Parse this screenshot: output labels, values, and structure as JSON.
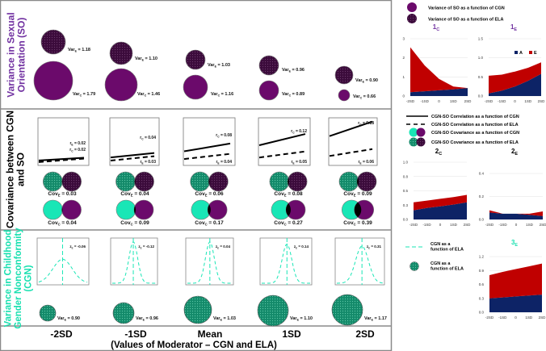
{
  "colors": {
    "cgn_so": "#6b0a6b",
    "ela_so": "#3b0b3b",
    "cgn_teal": "#19e6b6",
    "ela_teal": "#138a6a",
    "A": "#0d2366",
    "E": "#c00000",
    "so_label": "#7030a0",
    "cgn_label": "#19e0b0",
    "title_purple": "#7030a0",
    "title_teal": "#19e0b0"
  },
  "labels": {
    "var": "Var",
    "cov": "Cov",
    "r": "r",
    "z": "z",
    "sub_e": "E",
    "sub_c": "C"
  },
  "row_labels": {
    "so": [
      "Variance in Sexual",
      "Orientation (SO)"
    ],
    "cov": [
      "Covariance between CGN",
      "and SO"
    ],
    "cgn": [
      "Variance in Childhood",
      "Gender Nonconformity",
      "(CGN)"
    ]
  },
  "columns": [
    "-2SD",
    "-1SD",
    "Mean",
    "1SD",
    "2SD"
  ],
  "x_axis_title": "(Values of Moderator – CGN and ELA)",
  "so_variance": {
    "var_e": [
      "1.18",
      "1.10",
      "1.03",
      "0.96",
      "0.90"
    ],
    "var_c": [
      "1.79",
      "1.46",
      "1.16",
      "0.89",
      "0.66"
    ]
  },
  "correlation": {
    "r_c": [
      "0.02",
      "0.04",
      "0.08",
      "0.12",
      "0.18"
    ],
    "r_e": [
      "0.02",
      "0.03",
      "0.04",
      "0.05",
      "0.06"
    ]
  },
  "covariance": {
    "cov_e": [
      "0.03",
      "0.04",
      "0.06",
      "0.08",
      "0.09"
    ],
    "cov_c": [
      "0.04",
      "0.09",
      "0.17",
      "0.27",
      "0.39"
    ]
  },
  "cgn_variance": {
    "z_e": [
      "-0.06",
      "-0.12",
      "0.04",
      "0.14",
      "0.31"
    ],
    "var_e": [
      "0.90",
      "0.96",
      "1.03",
      "1.10",
      "1.17"
    ]
  },
  "legend1": [
    "Variance of SO as a function of CGN",
    "Variance of SO as a function of ELA"
  ],
  "legend2": [
    "CGN-SO Correlation as a function of CGN",
    "CGN-SO Correlation as a function of ELA",
    "CGN-SO Covariance as a function of CGN",
    "CGN-SO Covariance as a function of ELA"
  ],
  "legend3": [
    [
      "CGN as a",
      "function of ELA"
    ],
    [
      "CGN as a",
      "function of ELA"
    ]
  ],
  "chart_data": [
    {
      "type": "area",
      "title": "1",
      "title_sub": "C",
      "categories": [
        "-2SD",
        "-1SD",
        "0",
        "1SD",
        "2SD"
      ],
      "ylim": [
        0,
        3
      ],
      "yticks": [
        "0",
        "1",
        "2",
        "3"
      ],
      "ytick_values": [
        0,
        1,
        2,
        3
      ],
      "series": [
        {
          "name": "A",
          "values": [
            0.2,
            0.25,
            0.3,
            0.35,
            0.42
          ]
        },
        {
          "name": "E",
          "values": [
            2.35,
            1.35,
            0.6,
            0.15,
            0.0
          ]
        }
      ],
      "legend": false
    },
    {
      "type": "area",
      "title": "1",
      "title_sub": "E",
      "categories": [
        "-2SD",
        "-1SD",
        "0",
        "1SD",
        "2SD"
      ],
      "ylim": [
        0,
        1.5
      ],
      "yticks": [
        "0.0",
        "0.5",
        "1.0",
        "1.5"
      ],
      "ytick_values": [
        0,
        0.5,
        1.0,
        1.5
      ],
      "series": [
        {
          "name": "A",
          "values": [
            0.07,
            0.14,
            0.25,
            0.4,
            0.58
          ]
        },
        {
          "name": "E",
          "values": [
            0.46,
            0.42,
            0.39,
            0.34,
            0.3
          ]
        }
      ],
      "legend": true,
      "legend_position": "top-right"
    },
    {
      "type": "area",
      "title": "2",
      "title_sub": "C",
      "categories": [
        "-2SD",
        "-1SD",
        "0",
        "1SD",
        "2SD"
      ],
      "ylim": [
        0,
        1.0
      ],
      "yticks": [
        "0.0",
        "0.3",
        "0.5",
        "0.8",
        "1.0"
      ],
      "ytick_values": [
        0,
        0.25,
        0.5,
        0.75,
        1.0
      ],
      "series": [
        {
          "name": "A",
          "values": [
            0.16,
            0.2,
            0.23,
            0.26,
            0.3
          ]
        },
        {
          "name": "E",
          "values": [
            0.14,
            0.13,
            0.13,
            0.13,
            0.13
          ]
        }
      ],
      "legend": false
    },
    {
      "type": "area",
      "title": "2",
      "title_sub": "E",
      "categories": [
        "-2SD",
        "-1SD",
        "0",
        "1SD",
        "2SD"
      ],
      "ylim": [
        0,
        0.4
      ],
      "yticks": [
        "0.0",
        "0.2",
        "0.4"
      ],
      "ytick_values": [
        0,
        0.2,
        0.4
      ],
      "series": [
        {
          "name": "A",
          "values": [
            0.06,
            0.05,
            0.05,
            0.04,
            0.03
          ]
        },
        {
          "name": "E",
          "values": [
            0.02,
            0.0,
            0.0,
            0.01,
            0.04
          ]
        }
      ],
      "legend": false
    },
    {
      "type": "area",
      "title": "3",
      "title_sub": "E",
      "categories": [
        "-2SD",
        "-1SD",
        "0",
        "1SD",
        "2SD"
      ],
      "ylim": [
        0,
        1.2
      ],
      "yticks": [
        "0.0",
        "0.3",
        "0.6",
        "0.9",
        "1.2"
      ],
      "ytick_values": [
        0,
        0.3,
        0.6,
        0.9,
        1.2
      ],
      "series": [
        {
          "name": "A",
          "values": [
            0.3,
            0.32,
            0.34,
            0.36,
            0.38
          ]
        },
        {
          "name": "E",
          "values": [
            0.5,
            0.55,
            0.59,
            0.63,
            0.67
          ]
        }
      ],
      "legend": false
    }
  ]
}
